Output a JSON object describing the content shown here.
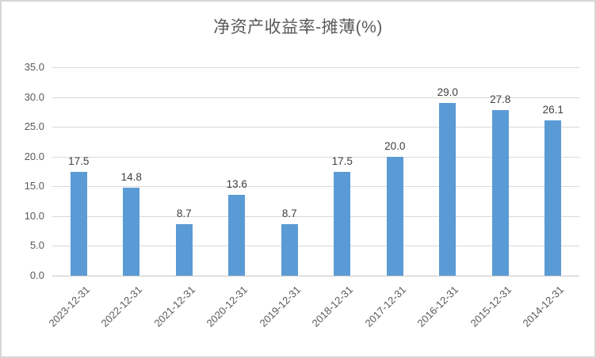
{
  "chart": {
    "title": "净资产收益率-摊薄(%)"
  },
  "chart_data": {
    "type": "bar",
    "title": "净资产收益率-摊薄(%)",
    "categories": [
      "2023-12-31",
      "2022-12-31",
      "2021-12-31",
      "2020-12-31",
      "2019-12-31",
      "2018-12-31",
      "2017-12-31",
      "2016-12-31",
      "2015-12-31",
      "2014-12-31"
    ],
    "values": [
      17.5,
      14.8,
      8.7,
      13.6,
      8.7,
      17.5,
      20.0,
      29.0,
      27.8,
      26.1
    ],
    "data_labels": [
      "17.5",
      "14.8",
      "8.7",
      "13.6",
      "8.7",
      "17.5",
      "20.0",
      "29.0",
      "27.8",
      "26.1"
    ],
    "xlabel": "",
    "ylabel": "",
    "ylim": [
      0,
      35
    ],
    "ytick_step": 5,
    "yticks": [
      "35.0",
      "30.0",
      "25.0",
      "20.0",
      "15.0",
      "10.0",
      "5.0",
      "0.0"
    ],
    "grid": true,
    "legend": "none",
    "bar_color": "#5b9bd5",
    "gridline_color": "#d9d9d9",
    "axis_label_color": "#595959",
    "data_label_color": "#404040",
    "title_color": "#595959"
  }
}
